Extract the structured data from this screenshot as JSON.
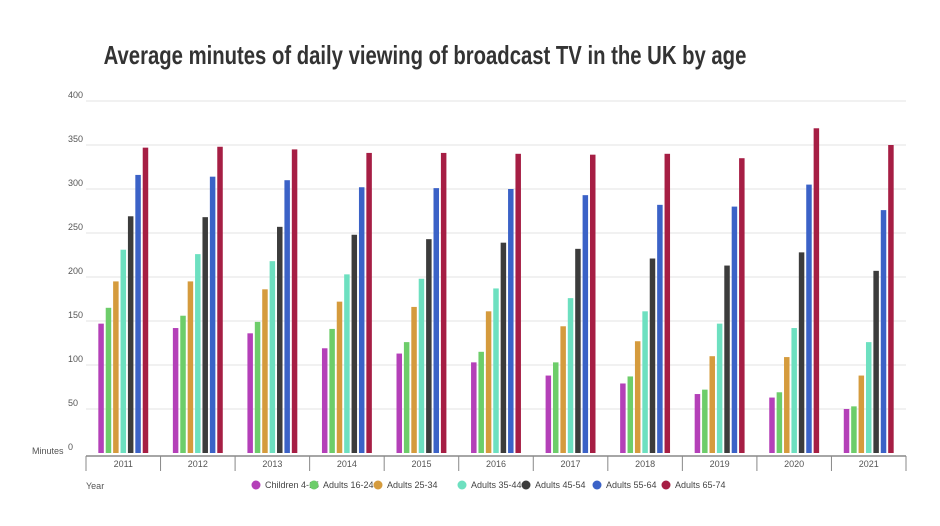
{
  "chart_data": {
    "type": "bar",
    "title": "Average minutes of daily viewing of broadcast TV in the UK by age",
    "xlabel": "Year",
    "ylabel": "Minutes",
    "ylim": [
      0,
      400
    ],
    "yticks": [
      0,
      50,
      100,
      150,
      200,
      250,
      300,
      350,
      400
    ],
    "grid": true,
    "legend_position": "bottom",
    "categories": [
      "2011",
      "2012",
      "2013",
      "2014",
      "2015",
      "2016",
      "2017",
      "2018",
      "2019",
      "2020",
      "2021"
    ],
    "series": [
      {
        "name": "Children 4-15",
        "color": "#b440b8",
        "values": [
          147,
          142,
          136,
          119,
          113,
          103,
          88,
          79,
          67,
          63,
          50
        ]
      },
      {
        "name": "Adults 16-24",
        "color": "#6dcd6a",
        "values": [
          165,
          156,
          149,
          141,
          126,
          115,
          103,
          87,
          72,
          69,
          53
        ]
      },
      {
        "name": "Adults 25-34",
        "color": "#d59b3d",
        "values": [
          195,
          195,
          186,
          172,
          166,
          161,
          144,
          127,
          110,
          109,
          88
        ]
      },
      {
        "name": "Adults 35-44",
        "color": "#6de0c0",
        "values": [
          231,
          226,
          218,
          203,
          198,
          187,
          176,
          161,
          147,
          142,
          126
        ]
      },
      {
        "name": "Adults 45-54",
        "color": "#3c3c3c",
        "values": [
          269,
          268,
          257,
          248,
          243,
          239,
          232,
          221,
          213,
          228,
          207
        ]
      },
      {
        "name": "Adults 55-64",
        "color": "#3b62c7",
        "values": [
          316,
          314,
          310,
          302,
          301,
          300,
          293,
          282,
          280,
          305,
          276
        ]
      },
      {
        "name": "Adults 65-74",
        "color": "#a61e44",
        "values": [
          347,
          348,
          345,
          341,
          341,
          340,
          339,
          340,
          335,
          369,
          350
        ]
      }
    ]
  }
}
